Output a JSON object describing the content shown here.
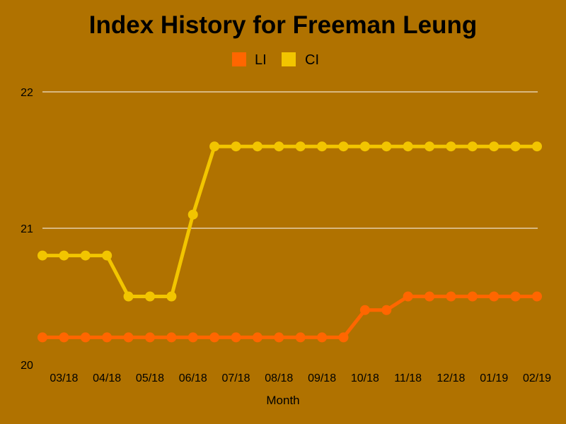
{
  "page": {
    "background_color": "#b07200"
  },
  "chart_data": {
    "type": "line",
    "title": "Index History for Freeman Leung",
    "xlabel": "Month",
    "ylabel": "",
    "ylim": [
      20,
      22
    ],
    "yticks": [
      20,
      21,
      22
    ],
    "grid": true,
    "legend_position": "top-center",
    "x_tick_labels": [
      "03/18",
      "04/18",
      "05/18",
      "06/18",
      "07/18",
      "08/18",
      "09/18",
      "10/18",
      "11/18",
      "12/18",
      "01/19",
      "02/19"
    ],
    "x": [
      "",
      "03/18",
      "",
      "04/18",
      "",
      "05/18",
      "",
      "06/18",
      "",
      "07/18",
      "",
      "08/18",
      "",
      "09/18",
      "",
      "10/18",
      "",
      "11/18",
      "",
      "12/18",
      "",
      "01/19",
      "",
      "02/19"
    ],
    "series": [
      {
        "name": "LI",
        "color": "#ff6600",
        "values": [
          20.2,
          20.2,
          20.2,
          20.2,
          20.2,
          20.2,
          20.2,
          20.2,
          20.2,
          20.2,
          20.2,
          20.2,
          20.2,
          20.2,
          20.2,
          20.4,
          20.4,
          20.5,
          20.5,
          20.5,
          20.5,
          20.5,
          20.5,
          20.5
        ]
      },
      {
        "name": "CI",
        "color": "#f2c500",
        "values": [
          20.8,
          20.8,
          20.8,
          20.8,
          20.5,
          20.5,
          20.5,
          21.1,
          21.6,
          21.6,
          21.6,
          21.6,
          21.6,
          21.6,
          21.6,
          21.6,
          21.6,
          21.6,
          21.6,
          21.6,
          21.6,
          21.6,
          21.6,
          21.6
        ]
      }
    ]
  }
}
